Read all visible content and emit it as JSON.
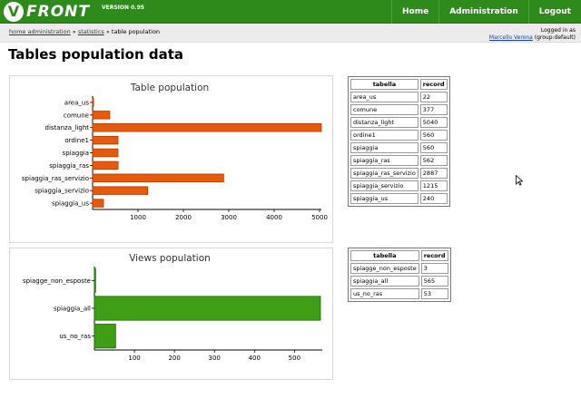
{
  "header": {
    "logo_letter": "V",
    "logo_text": "FRONT",
    "version": "VERSION 0.95",
    "nav": [
      {
        "label": "Home"
      },
      {
        "label": "Administration"
      },
      {
        "label": "Logout"
      }
    ]
  },
  "breadcrumb": {
    "home": "home administration",
    "sep1": " » ",
    "statistics": "statistics",
    "sep2": " » ",
    "current": "table population"
  },
  "login": {
    "logged_in": "Logged in as",
    "user": "Marcello Verona",
    "group": "(group:default)"
  },
  "page_title": "Tables population data",
  "colors": {
    "table_bar": "#e55a0c",
    "table_bar_edge": "#b03a00",
    "view_bar": "#3f9d16",
    "view_bar_edge": "#1f6a05"
  },
  "chart_data": [
    {
      "type": "bar",
      "orientation": "horizontal",
      "title": "Table population",
      "categories": [
        "area_us",
        "comune",
        "distanza_light",
        "ordine1",
        "spiaggia",
        "spiaggia_ras",
        "spiaggia_ras_servizio",
        "spiaggia_servizio",
        "spiaggia_us"
      ],
      "values": [
        22,
        377,
        5040,
        560,
        560,
        562,
        2887,
        1215,
        240
      ],
      "xlim": [
        0,
        5000
      ],
      "xticks": [
        1000,
        2000,
        3000,
        4000,
        5000
      ],
      "xlabel": "",
      "ylabel": ""
    },
    {
      "type": "bar",
      "orientation": "horizontal",
      "title": "Views population",
      "categories": [
        "spiagge_non_esposte",
        "spiaggia_all",
        "us_no_ras"
      ],
      "values": [
        3,
        565,
        53
      ],
      "xlim": [
        0,
        565
      ],
      "xticks": [
        100,
        200,
        300,
        400,
        500
      ],
      "xlabel": "",
      "ylabel": ""
    }
  ],
  "tables_table": {
    "headers": [
      "tabella",
      "record"
    ],
    "rows": [
      [
        "area_us",
        "22"
      ],
      [
        "comune",
        "377"
      ],
      [
        "distanza_light",
        "5040"
      ],
      [
        "ordine1",
        "560"
      ],
      [
        "spiaggia",
        "560"
      ],
      [
        "spiaggia_ras",
        "562"
      ],
      [
        "spiaggia_ras_servizio",
        "2887"
      ],
      [
        "spiaggia_servizio",
        "1215"
      ],
      [
        "spiaggia_us",
        "240"
      ]
    ]
  },
  "views_table": {
    "headers": [
      "tabella",
      "record"
    ],
    "rows": [
      [
        "spiagge_non_esposte",
        "3"
      ],
      [
        "spiaggia_all",
        "565"
      ],
      [
        "us_no_ras",
        "53"
      ]
    ]
  }
}
